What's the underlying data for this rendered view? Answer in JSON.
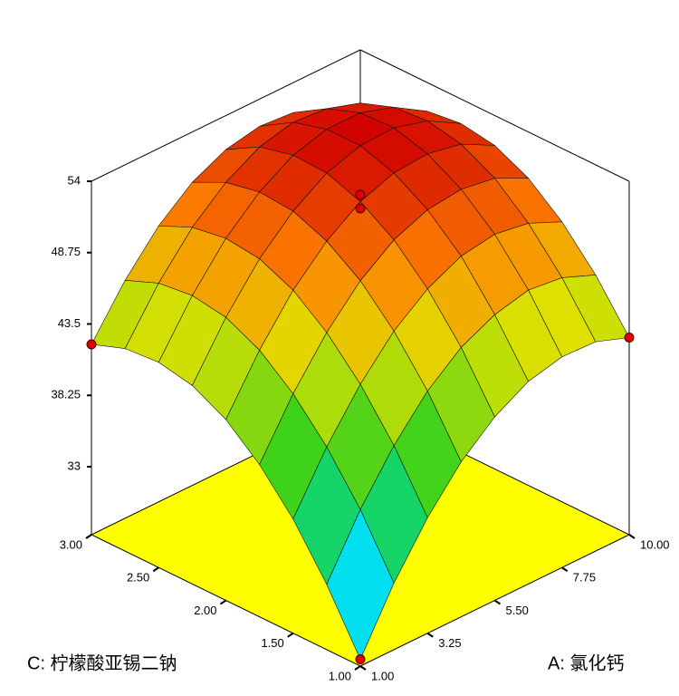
{
  "chart_data": {
    "type": "surface",
    "x_label": "A: 氯化钙",
    "y_label": "C: 柠檬酸亚锡二钠",
    "x": [
      1,
      2.125,
      3.25,
      4.375,
      5.5,
      6.625,
      7.75,
      8.875,
      10
    ],
    "y": [
      1,
      1.25,
      1.5,
      1.75,
      2,
      2.25,
      2.5,
      2.75,
      3
    ],
    "z": [
      [
        28.5,
        32.9,
        36.5,
        39.4,
        41.5,
        42.9,
        43.5,
        43.4,
        42.5
      ],
      [
        32.8,
        37.1,
        40.6,
        43.4,
        45.4,
        46.6,
        47.2,
        46.9,
        45.9
      ],
      [
        36.4,
        40.5,
        43.9,
        46.6,
        48.5,
        49.7,
        50.1,
        49.7,
        48.6
      ],
      [
        39.2,
        43.2,
        46.5,
        49.1,
        50.9,
        51.9,
        52.2,
        51.8,
        50.6
      ],
      [
        41.3,
        45.2,
        48.4,
        50.8,
        52.5,
        53.4,
        53.6,
        53.1,
        51.8
      ],
      [
        42.6,
        46.4,
        49.5,
        51.8,
        53.4,
        54.2,
        54.3,
        53.6,
        52.2
      ],
      [
        43.1,
        46.8,
        49.8,
        52.0,
        53.5,
        54.2,
        54.2,
        53.4,
        51.9
      ],
      [
        42.9,
        46.5,
        49.4,
        51.5,
        52.9,
        53.5,
        53.3,
        52.5,
        50.8
      ],
      [
        42.0,
        45.5,
        48.3,
        50.3,
        51.5,
        52.0,
        51.8,
        50.8,
        49.0
      ]
    ],
    "xlim": [
      1,
      10
    ],
    "ylim": [
      1,
      3
    ],
    "zlim": [
      28,
      54
    ],
    "xticks": [
      {
        "value": 1,
        "label": "1.00"
      },
      {
        "value": 3.25,
        "label": "3.25"
      },
      {
        "value": 5.5,
        "label": "5.50"
      },
      {
        "value": 7.75,
        "label": "7.75"
      },
      {
        "value": 10,
        "label": "10.00"
      }
    ],
    "yticks": [
      {
        "value": 1,
        "label": "1.00"
      },
      {
        "value": 1.5,
        "label": "1.50"
      },
      {
        "value": 2,
        "label": "2.00"
      },
      {
        "value": 2.5,
        "label": "2.50"
      },
      {
        "value": 3,
        "label": "3.00"
      }
    ],
    "zticks": [
      33,
      38.25,
      43.5,
      48.75,
      54
    ],
    "floor_color": "#ffff00",
    "point_color": "#e00000",
    "design_points": {
      "x": [
        1,
        1,
        10,
        5.5,
        5.5
      ],
      "y": [
        1,
        3,
        1,
        2,
        2
      ],
      "z": [
        28.5,
        42,
        42.5,
        53,
        52
      ]
    }
  }
}
